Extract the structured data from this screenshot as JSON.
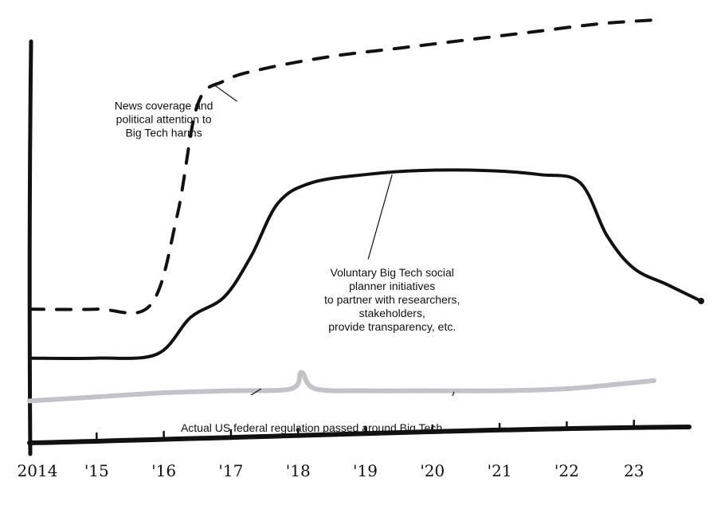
{
  "chart_data": {
    "type": "line",
    "x": [
      2014,
      2015,
      2016,
      2017,
      2018,
      2019,
      2020,
      2021,
      2022,
      2023
    ],
    "x_tick_labels": [
      "2014",
      "'15",
      "'16",
      "'17",
      "'18",
      "'19",
      "'20",
      "'21",
      "'22",
      "23"
    ],
    "xlim": [
      2014,
      2024
    ],
    "ylim": [
      0,
      10
    ],
    "grid": false,
    "legend": "none",
    "series": [
      {
        "style": "dashed",
        "color": "#111111",
        "points": [
          [
            2014,
            3.2
          ],
          [
            2015,
            3.2
          ],
          [
            2015.8,
            3.3
          ],
          [
            2016.2,
            5.5
          ],
          [
            2016.5,
            8.2
          ],
          [
            2016.9,
            8.8
          ],
          [
            2017.5,
            9.1
          ],
          [
            2018.5,
            9.4
          ],
          [
            2019.5,
            9.6
          ],
          [
            2020.5,
            9.8
          ],
          [
            2021.5,
            10.0
          ],
          [
            2022.5,
            10.2
          ],
          [
            2023.4,
            10.3
          ]
        ]
      },
      {
        "style": "solid",
        "color": "#111111",
        "points": [
          [
            2014,
            2.0
          ],
          [
            2015,
            2.0
          ],
          [
            2015.9,
            2.1
          ],
          [
            2016.4,
            3.0
          ],
          [
            2016.9,
            3.5
          ],
          [
            2017.3,
            4.5
          ],
          [
            2017.7,
            5.8
          ],
          [
            2018.2,
            6.3
          ],
          [
            2019,
            6.5
          ],
          [
            2019.8,
            6.6
          ],
          [
            2020.8,
            6.6
          ],
          [
            2021.6,
            6.5
          ],
          [
            2022.2,
            6.3
          ],
          [
            2022.6,
            5.0
          ],
          [
            2023,
            4.2
          ],
          [
            2023.5,
            3.8
          ],
          [
            2024,
            3.4
          ]
        ]
      },
      {
        "style": "solid",
        "color": "#c4c2c8",
        "points": [
          [
            2014,
            0.95
          ],
          [
            2015,
            1.05
          ],
          [
            2016,
            1.15
          ],
          [
            2017,
            1.2
          ],
          [
            2017.9,
            1.25
          ],
          [
            2018.05,
            1.65
          ],
          [
            2018.25,
            1.25
          ],
          [
            2019,
            1.2
          ],
          [
            2020,
            1.2
          ],
          [
            2021,
            1.2
          ],
          [
            2022,
            1.25
          ],
          [
            2023,
            1.4
          ],
          [
            2023.3,
            1.45
          ]
        ]
      }
    ],
    "annotations": [
      {
        "lines": [
          "News coverage and",
          "political attention to",
          "Big Tech harms"
        ],
        "x": 2016.0,
        "y": 8.1,
        "target": [
          2016.75,
          8.7
        ]
      },
      {
        "lines": [
          "Voluntary Big Tech social",
          "planner initiatives",
          "to partner with researchers,",
          "stakeholders,",
          "provide transparency, etc."
        ],
        "x": 2019.4,
        "y": 4.0,
        "target": [
          2019.4,
          6.5
        ]
      },
      {
        "lines": [
          "Actual US federal regulation passed around Big Tech"
        ],
        "x": 2018.2,
        "y": 0.2,
        "target": null
      }
    ]
  },
  "colors": {
    "ink": "#111111",
    "regulation": "#c4c2c8"
  }
}
